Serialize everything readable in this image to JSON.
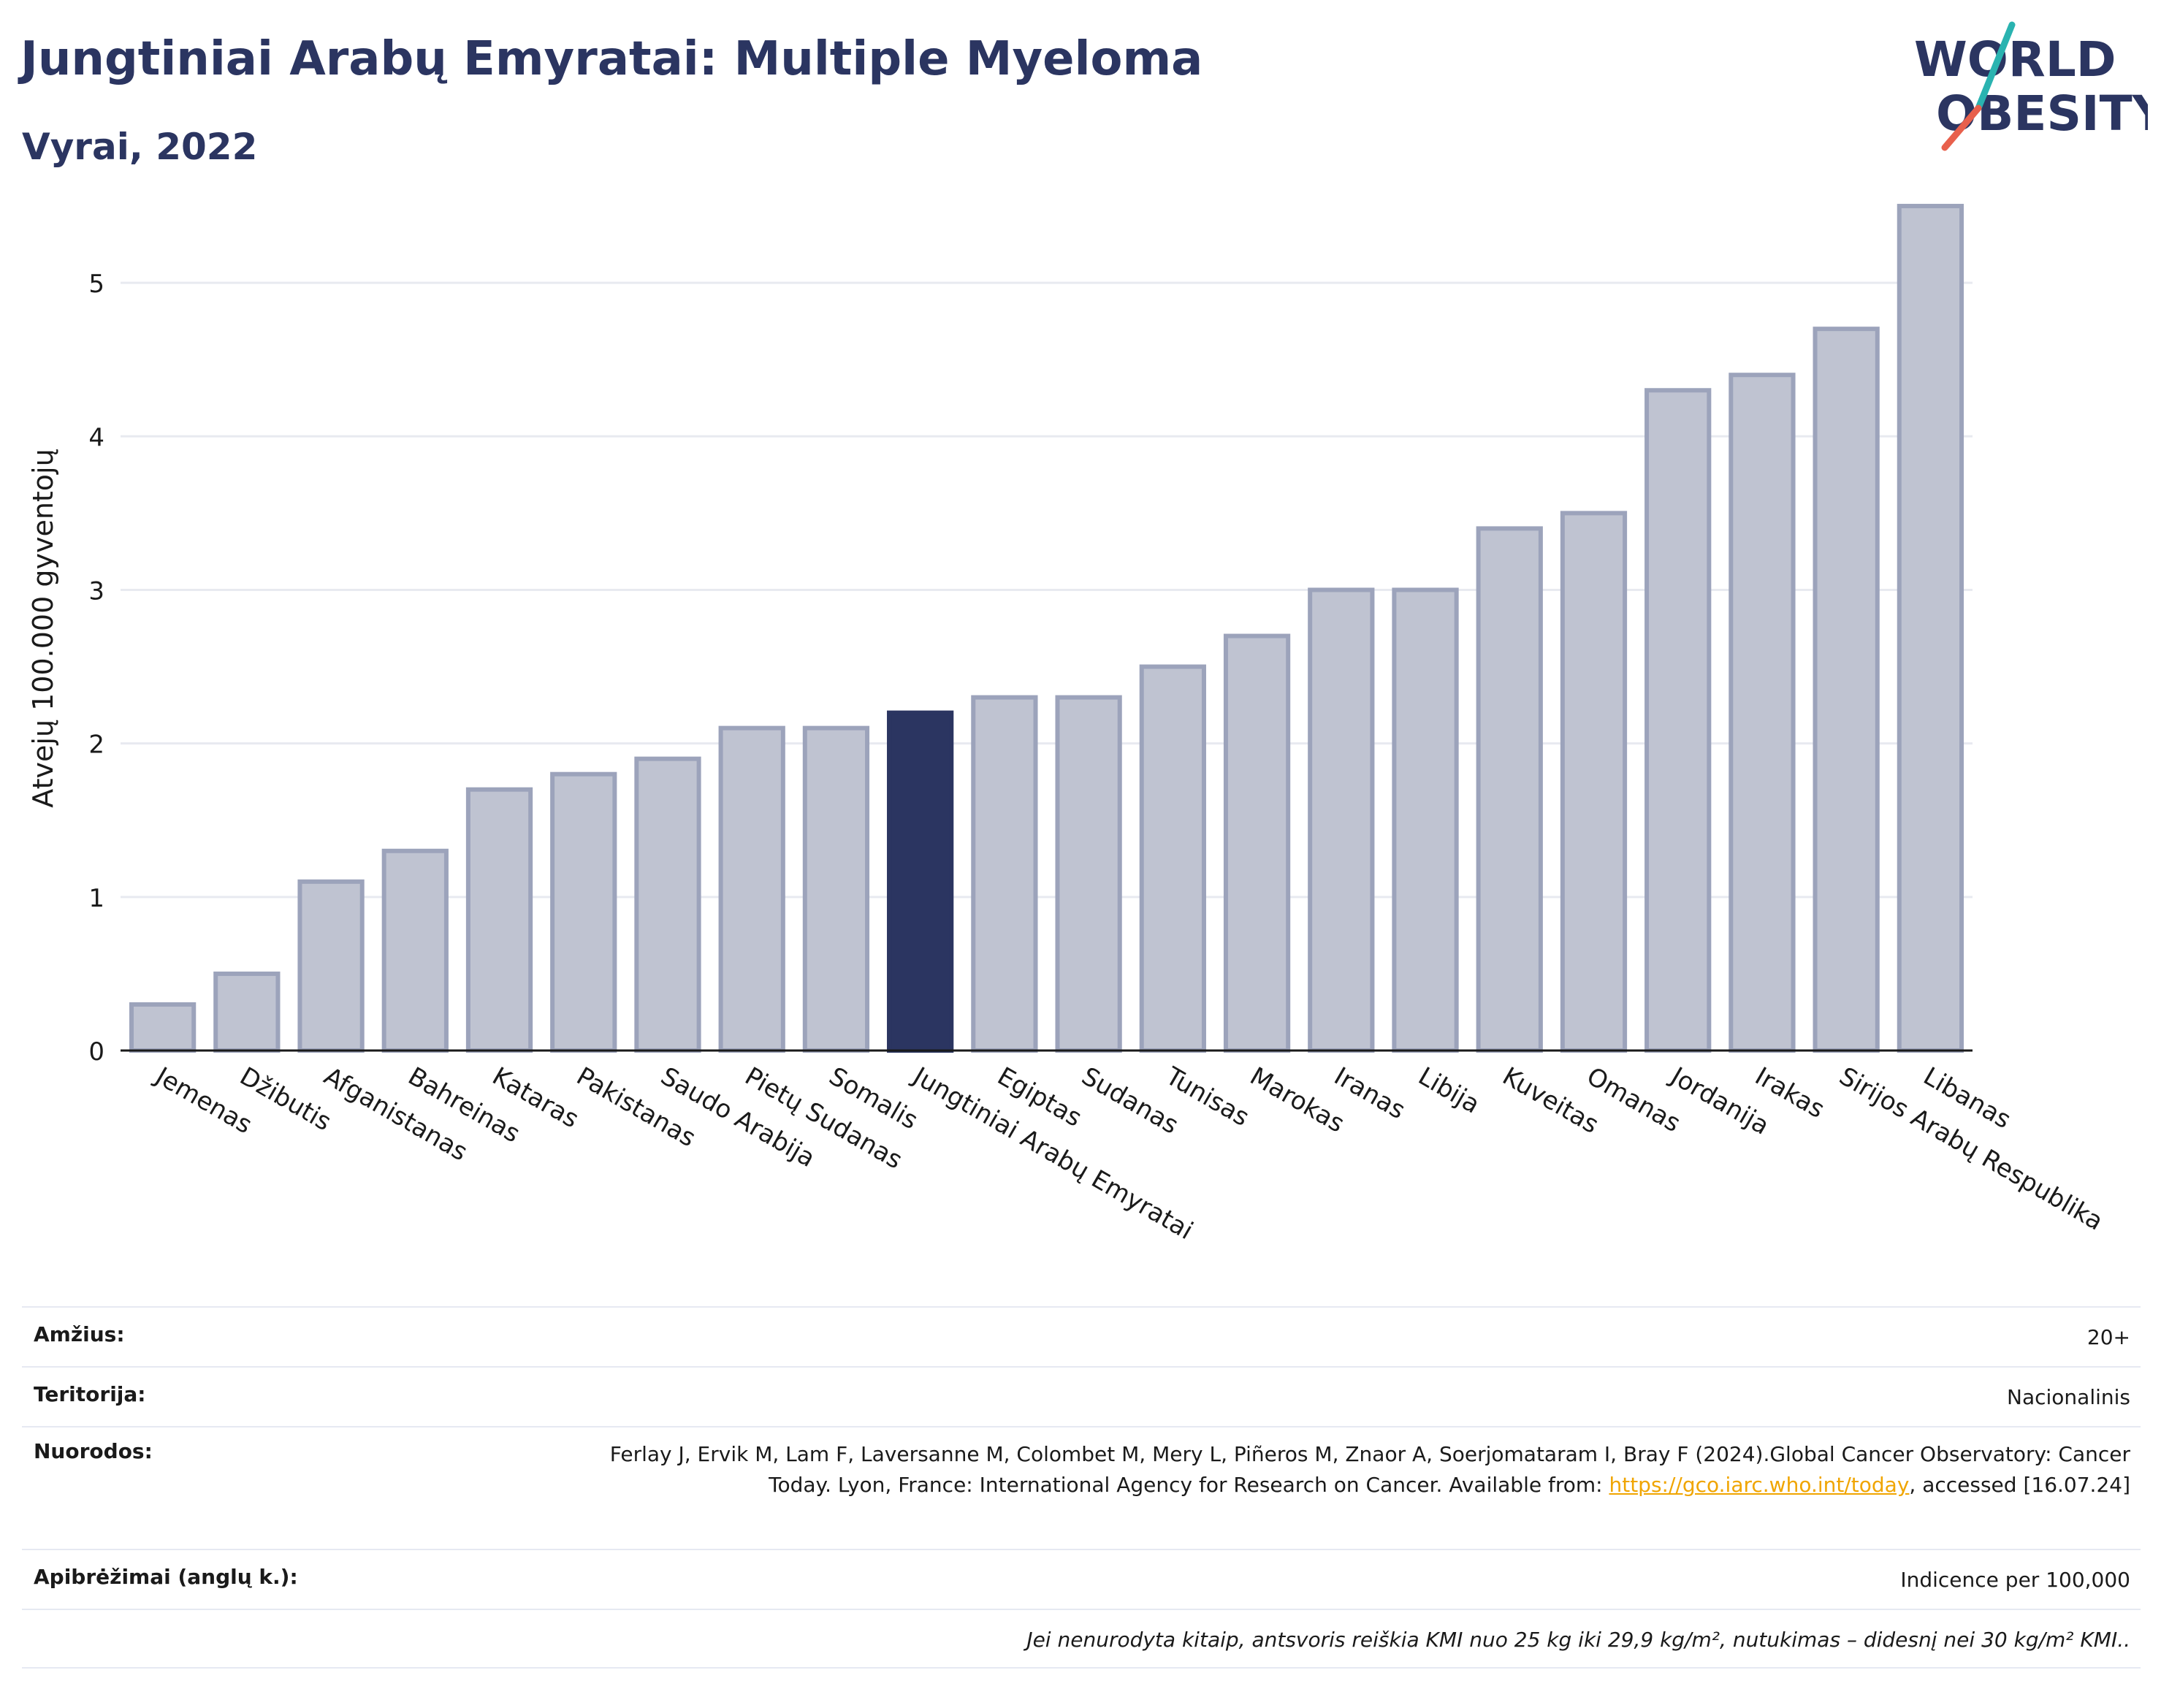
{
  "header": {
    "title": "Jungtiniai Arabų Emyratai: Multiple Myeloma",
    "subtitle": "Vyrai, 2022"
  },
  "logo": {
    "line1": "WORLD",
    "line2": "OBESITY",
    "text_color": "#2b3561",
    "slash_top_color": "#2ab3b0",
    "slash_bottom_color": "#e8604c"
  },
  "chart_data": {
    "type": "bar",
    "ylabel": "Atvejų 100.000 gyventojų",
    "ylim": [
      0,
      5.7
    ],
    "yticks": [
      0,
      1,
      2,
      3,
      4,
      5
    ],
    "grid": true,
    "categories": [
      "Jemenas",
      "Džibutis",
      "Afganistanas",
      "Bahreinas",
      "Kataras",
      "Pakistanas",
      "Saudo Arabija",
      "Pietų Sudanas",
      "Somalis",
      "Jungtiniai Arabų Emyratai",
      "Egiptas",
      "Sudanas",
      "Tunisas",
      "Marokas",
      "Iranas",
      "Libija",
      "Kuveitas",
      "Omanas",
      "Jordanija",
      "Irakas",
      "Sirijos Arabų Respublika",
      "Libanas"
    ],
    "values": [
      0.3,
      0.5,
      1.1,
      1.3,
      1.7,
      1.8,
      1.9,
      2.1,
      2.1,
      2.2,
      2.3,
      2.3,
      2.5,
      2.7,
      3.0,
      3.0,
      3.4,
      3.5,
      4.3,
      4.4,
      4.7,
      5.5
    ],
    "highlight": "Jungtiniai Arabų Emyratai",
    "colors": {
      "bar": "#bfc3d1",
      "bar_border": "#9ca3bb",
      "highlight": "#2b3561",
      "grid": "#e8eaf0"
    }
  },
  "info": {
    "rows": [
      {
        "label": "Amžius:",
        "value": "20+"
      },
      {
        "label": "Teritorija:",
        "value": "Nacionalinis"
      },
      {
        "label": "Nuorodos:",
        "value_pre": "Ferlay J, Ervik M, Lam F, Laversanne M, Colombet M, Mery L, Piñeros M, Znaor A, Soerjomataram I, Bray F (2024).Global Cancer Observatory: Cancer Today. Lyon, France: International Agency for Research on Cancer. Available from: ",
        "link": "https://gco.iarc.who.int/today",
        "value_post": ", accessed [16.07.24]"
      },
      {
        "label": "Apibrėžimai (anglų k.):",
        "value": "Indicence per 100,000"
      }
    ],
    "note": "Jei nenurodyta kitaip, antsvoris reiškia KMI nuo 25 kg iki 29,9 kg/m², nutukimas – didesnį nei 30 kg/m² KMI.."
  }
}
